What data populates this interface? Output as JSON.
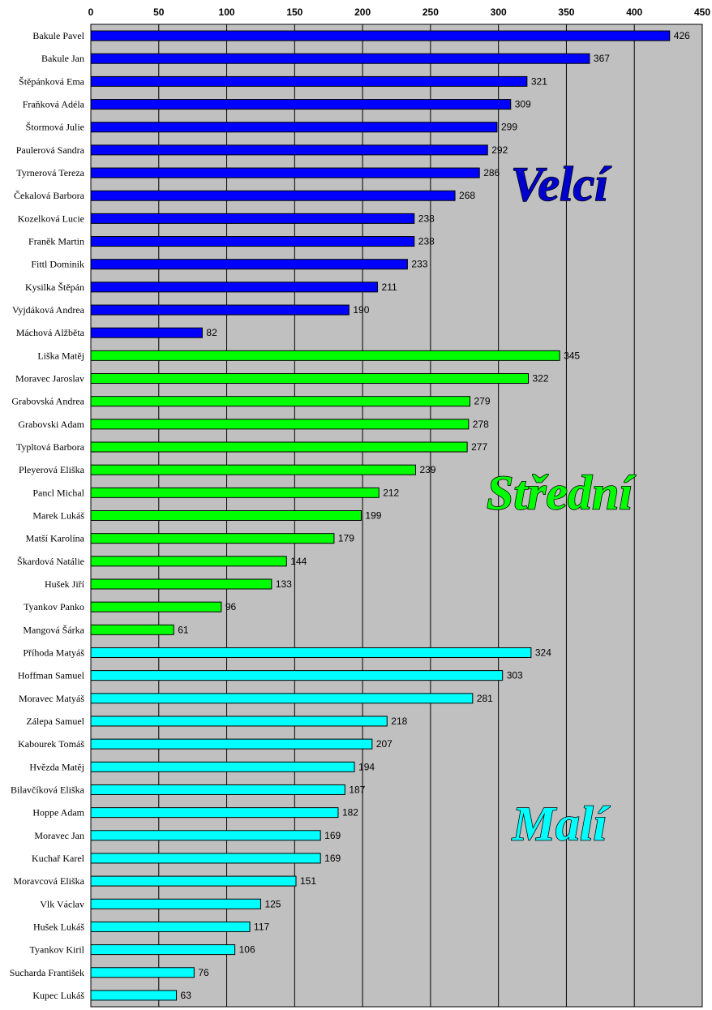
{
  "chart_data": {
    "type": "bar",
    "orientation": "horizontal",
    "xlim": [
      0,
      450
    ],
    "x_ticks": [
      "0",
      "50",
      "100",
      "150",
      "200",
      "250",
      "300",
      "350",
      "400",
      "450"
    ],
    "grid": true,
    "plot_background": "#c0c0c0",
    "data_labels": true,
    "groups": [
      {
        "label": "Velcí",
        "color": "#0000ff",
        "label_color": "#0000cc",
        "categories": [
          "Bakule Pavel",
          "Bakule Jan",
          "Štěpánková Ema",
          "Fraňková Adéla",
          "Štormová Julie",
          "Paulerová Sandra",
          "Tyrnerová Tereza",
          "Čekalová Barbora",
          "Kozelková Lucie",
          "Franěk Martin",
          "Fittl Dominik",
          "Kysilka Štěpán",
          "Vyjdáková Andrea",
          "Máchová Alžběta"
        ],
        "values": [
          426,
          367,
          321,
          309,
          299,
          292,
          286,
          268,
          238,
          238,
          233,
          211,
          190,
          82
        ]
      },
      {
        "label": "Střední",
        "color": "#00ff00",
        "label_color": "#00ff00",
        "categories": [
          "Liška Matěj",
          "Moravec Jaroslav",
          "Grabovská Andrea",
          "Grabovski Adam",
          "Typltová Barbora",
          "Pleyerová Eliška",
          "Pancl Michal",
          "Marek Lukáš",
          "Matší Karolína",
          "Škardová Natálie",
          "Hušek Jiří",
          "Tyankov Panko",
          "Mangová Šárka"
        ],
        "values": [
          345,
          322,
          279,
          278,
          277,
          239,
          212,
          199,
          179,
          144,
          133,
          96,
          61
        ]
      },
      {
        "label": "Malí",
        "color": "#00ffff",
        "label_color": "#00ffff",
        "categories": [
          "Příhoda Matyáš",
          "Hoffman Samuel",
          "Moravec Matyáš",
          "Zálepa Samuel",
          "Kabourek Tomáš",
          "Hvězda Matěj",
          "Bilavčíková Eliška",
          "Hoppe Adam",
          "Moravec Jan",
          "Kuchař Karel",
          "Moravcová Eliška",
          "Vlk Václav",
          "Hušek Lukáš",
          "Tyankov Kiril",
          "Sucharda František",
          "Kupec Lukáš"
        ],
        "values": [
          324,
          303,
          281,
          218,
          207,
          194,
          187,
          182,
          169,
          169,
          151,
          125,
          117,
          106,
          76,
          63
        ]
      }
    ]
  }
}
